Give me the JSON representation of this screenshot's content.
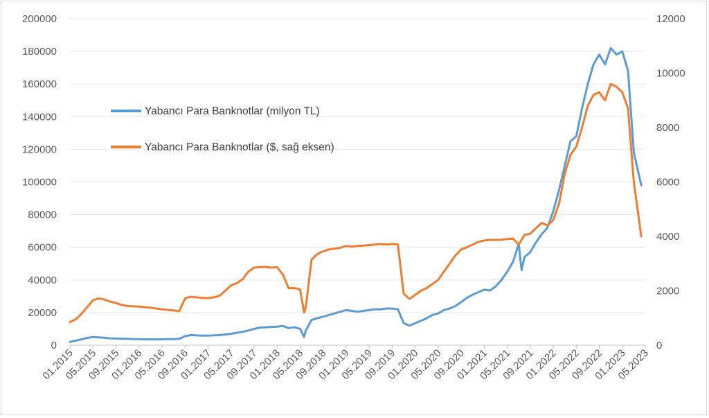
{
  "chart_data": {
    "type": "line",
    "title": "",
    "xlabel": "",
    "ylabel": "",
    "ylim": [
      0,
      200000
    ],
    "y2lim": [
      0,
      12000
    ],
    "y_ticks": [
      "0",
      "20000",
      "40000",
      "60000",
      "80000",
      "100000",
      "120000",
      "140000",
      "160000",
      "180000",
      "200000"
    ],
    "y2_ticks": [
      "0",
      "2000",
      "4000",
      "6000",
      "8000",
      "10000",
      "12000"
    ],
    "x_ticks": [
      "01.2015",
      "05.2015",
      "09.2015",
      "01.2016",
      "05.2016",
      "09.2016",
      "01.2017",
      "05.2017",
      "09.2017",
      "01.2018",
      "05.2018",
      "09.2018",
      "01.2019",
      "05.2019",
      "09.2019",
      "01.2020",
      "05.2020",
      "09.2020",
      "01.2021",
      "05.2021",
      "09.2021",
      "01.2022",
      "05.2022",
      "09.2022",
      "01.2023",
      "05.2023"
    ],
    "legend_position": "upper-left",
    "grid": true,
    "series": [
      {
        "name": "Yabancı Para Banknotlar (milyon TL)",
        "axis": "left",
        "color": "#5b9bd5",
        "points": [
          [
            0,
            2000
          ],
          [
            1,
            2800
          ],
          [
            2,
            3600
          ],
          [
            3,
            4400
          ],
          [
            4,
            5000
          ],
          [
            5,
            4800
          ],
          [
            6,
            4600
          ],
          [
            7,
            4200
          ],
          [
            8,
            4100
          ],
          [
            9,
            4000
          ],
          [
            10,
            3900
          ],
          [
            11,
            3800
          ],
          [
            12,
            3700
          ],
          [
            13,
            3600
          ],
          [
            14,
            3600
          ],
          [
            15,
            3600
          ],
          [
            16,
            3600
          ],
          [
            17,
            3700
          ],
          [
            18,
            3700
          ],
          [
            19,
            3900
          ],
          [
            20,
            5500
          ],
          [
            21,
            6200
          ],
          [
            22,
            6000
          ],
          [
            23,
            5900
          ],
          [
            24,
            5900
          ],
          [
            25,
            6000
          ],
          [
            26,
            6200
          ],
          [
            27,
            6600
          ],
          [
            28,
            7000
          ],
          [
            29,
            7600
          ],
          [
            30,
            8200
          ],
          [
            31,
            9000
          ],
          [
            32,
            10000
          ],
          [
            33,
            10800
          ],
          [
            34,
            11000
          ],
          [
            35,
            11200
          ],
          [
            36,
            11400
          ],
          [
            37,
            11800
          ],
          [
            38,
            10500
          ],
          [
            39,
            11000
          ],
          [
            40,
            10000
          ],
          [
            40.7,
            5000
          ],
          [
            41,
            9000
          ],
          [
            42,
            15500
          ],
          [
            43,
            16500
          ],
          [
            44,
            17500
          ],
          [
            45,
            18500
          ],
          [
            46,
            19500
          ],
          [
            47,
            20500
          ],
          [
            48,
            21500
          ],
          [
            49,
            21000
          ],
          [
            50,
            20500
          ],
          [
            51,
            21000
          ],
          [
            52,
            21500
          ],
          [
            53,
            22000
          ],
          [
            54,
            22000
          ],
          [
            55,
            22500
          ],
          [
            56,
            22500
          ],
          [
            57,
            22000
          ],
          [
            58,
            13500
          ],
          [
            59,
            12000
          ],
          [
            60,
            13500
          ],
          [
            61,
            15000
          ],
          [
            62,
            16500
          ],
          [
            63,
            18500
          ],
          [
            64,
            19500
          ],
          [
            65,
            21500
          ],
          [
            66,
            22500
          ],
          [
            67,
            24000
          ],
          [
            68,
            26500
          ],
          [
            69,
            29000
          ],
          [
            70,
            31000
          ],
          [
            71,
            32500
          ],
          [
            72,
            34000
          ],
          [
            73,
            33500
          ],
          [
            74,
            36000
          ],
          [
            75,
            40000
          ],
          [
            76,
            45000
          ],
          [
            77,
            51000
          ],
          [
            78,
            62000
          ],
          [
            78.5,
            46000
          ],
          [
            79,
            54000
          ],
          [
            80,
            57000
          ],
          [
            81,
            63000
          ],
          [
            82,
            68000
          ],
          [
            83,
            72000
          ],
          [
            84,
            82000
          ],
          [
            85,
            95000
          ],
          [
            86,
            110000
          ],
          [
            87,
            125000
          ],
          [
            88,
            128000
          ],
          [
            89,
            145000
          ],
          [
            90,
            160000
          ],
          [
            91,
            172000
          ],
          [
            92,
            178000
          ],
          [
            93,
            172000
          ],
          [
            94,
            182000
          ],
          [
            95,
            178000
          ],
          [
            96,
            180000
          ],
          [
            97,
            168000
          ],
          [
            98,
            118000
          ],
          [
            99.3,
            98000
          ]
        ]
      },
      {
        "name": "Yabancı Para Banknotlar ($, sağ eksen)",
        "axis": "right",
        "color": "#ed7d31",
        "points": [
          [
            0,
            850
          ],
          [
            1,
            950
          ],
          [
            2,
            1150
          ],
          [
            3,
            1400
          ],
          [
            4,
            1650
          ],
          [
            5,
            1720
          ],
          [
            6,
            1680
          ],
          [
            7,
            1600
          ],
          [
            8,
            1550
          ],
          [
            9,
            1480
          ],
          [
            10,
            1440
          ],
          [
            11,
            1430
          ],
          [
            12,
            1420
          ],
          [
            13,
            1400
          ],
          [
            14,
            1380
          ],
          [
            15,
            1350
          ],
          [
            16,
            1320
          ],
          [
            17,
            1300
          ],
          [
            18,
            1280
          ],
          [
            19,
            1250
          ],
          [
            20,
            1720
          ],
          [
            21,
            1780
          ],
          [
            22,
            1760
          ],
          [
            23,
            1740
          ],
          [
            24,
            1730
          ],
          [
            25,
            1760
          ],
          [
            26,
            1820
          ],
          [
            27,
            2000
          ],
          [
            28,
            2200
          ],
          [
            29,
            2280
          ],
          [
            30,
            2420
          ],
          [
            31,
            2700
          ],
          [
            32,
            2850
          ],
          [
            33,
            2870
          ],
          [
            34,
            2880
          ],
          [
            35,
            2850
          ],
          [
            36,
            2870
          ],
          [
            37,
            2600
          ],
          [
            38,
            2100
          ],
          [
            39,
            2100
          ],
          [
            40,
            2050
          ],
          [
            40.7,
            1200
          ],
          [
            41,
            1400
          ],
          [
            42,
            3150
          ],
          [
            43,
            3350
          ],
          [
            44,
            3450
          ],
          [
            45,
            3520
          ],
          [
            46,
            3550
          ],
          [
            47,
            3580
          ],
          [
            48,
            3650
          ],
          [
            49,
            3620
          ],
          [
            50,
            3650
          ],
          [
            51,
            3660
          ],
          [
            52,
            3680
          ],
          [
            53,
            3700
          ],
          [
            54,
            3720
          ],
          [
            55,
            3700
          ],
          [
            56,
            3720
          ],
          [
            57,
            3700
          ],
          [
            58,
            1900
          ],
          [
            59,
            1700
          ],
          [
            60,
            1850
          ],
          [
            61,
            2000
          ],
          [
            62,
            2100
          ],
          [
            63,
            2250
          ],
          [
            64,
            2400
          ],
          [
            65,
            2700
          ],
          [
            66,
            3000
          ],
          [
            67,
            3300
          ],
          [
            68,
            3520
          ],
          [
            69,
            3600
          ],
          [
            70,
            3700
          ],
          [
            71,
            3800
          ],
          [
            72,
            3850
          ],
          [
            73,
            3870
          ],
          [
            74,
            3870
          ],
          [
            75,
            3880
          ],
          [
            76,
            3900
          ],
          [
            77,
            3920
          ],
          [
            78,
            3700
          ],
          [
            79,
            4050
          ],
          [
            80,
            4100
          ],
          [
            81,
            4300
          ],
          [
            82,
            4500
          ],
          [
            83,
            4400
          ],
          [
            84,
            4600
          ],
          [
            85,
            5200
          ],
          [
            86,
            6300
          ],
          [
            87,
            7000
          ],
          [
            88,
            7300
          ],
          [
            89,
            8000
          ],
          [
            90,
            8800
          ],
          [
            91,
            9200
          ],
          [
            92,
            9300
          ],
          [
            93,
            9000
          ],
          [
            94,
            9600
          ],
          [
            95,
            9500
          ],
          [
            96,
            9300
          ],
          [
            97,
            8700
          ],
          [
            98,
            6000
          ],
          [
            99.3,
            4000
          ]
        ]
      }
    ]
  }
}
